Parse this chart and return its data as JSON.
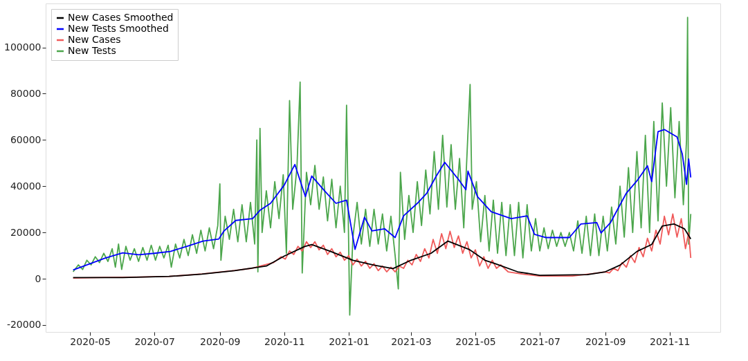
{
  "chart_data": {
    "type": "line",
    "legend": "top left",
    "xlim": [
      "2020-03-20",
      "2021-12-19"
    ],
    "ylim": [
      -23000,
      119000
    ],
    "xticks": [
      "2020-05",
      "2020-07",
      "2020-09",
      "2020-11",
      "2021-01",
      "2021-03",
      "2021-05",
      "2021-07",
      "2021-09",
      "2021-11"
    ],
    "yticks": [
      -20000,
      0,
      20000,
      40000,
      60000,
      80000,
      100000
    ],
    "series": [
      {
        "name": "New Cases Smoothed",
        "color": "#000000",
        "type": "line",
        "x": [
          "2020-04-15",
          "2020-06-01",
          "2020-07-15",
          "2020-08-15",
          "2020-09-15",
          "2020-10-15",
          "2020-11-01",
          "2020-11-20",
          "2020-11-27",
          "2020-12-15",
          "2021-01-05",
          "2021-01-25",
          "2021-02-12",
          "2021-03-01",
          "2021-03-20",
          "2021-04-05",
          "2021-04-25",
          "2021-05-10",
          "2021-05-20",
          "2021-06-10",
          "2021-07-01",
          "2021-08-15",
          "2021-09-01",
          "2021-09-15",
          "2021-10-01",
          "2021-10-15",
          "2021-10-25",
          "2021-11-05",
          "2021-11-15",
          "2021-11-21"
        ],
        "values": [
          500,
          500,
          1000,
          2000,
          3500,
          5500,
          9800,
          13900,
          14800,
          11800,
          8000,
          5900,
          4400,
          8000,
          11000,
          16300,
          12700,
          8000,
          6500,
          3000,
          1500,
          1800,
          3000,
          5900,
          11800,
          14800,
          22800,
          23700,
          21600,
          17200
        ]
      },
      {
        "name": "New Tests Smoothed",
        "color": "#0000ff",
        "type": "line",
        "x": [
          "2020-04-15",
          "2020-05-01",
          "2020-05-15",
          "2020-06-01",
          "2020-06-16",
          "2020-07-01",
          "2020-07-16",
          "2020-08-02",
          "2020-08-16",
          "2020-08-31",
          "2020-09-05",
          "2020-09-16",
          "2020-10-02",
          "2020-10-09",
          "2020-10-19",
          "2020-11-01",
          "2020-11-11",
          "2020-11-21",
          "2020-11-27",
          "2020-12-10",
          "2020-12-20",
          "2020-12-30",
          "2021-01-07",
          "2021-01-16",
          "2021-01-23",
          "2021-02-04",
          "2021-02-14",
          "2021-02-22",
          "2021-03-07",
          "2021-03-16",
          "2021-03-25",
          "2021-04-02",
          "2021-04-15",
          "2021-04-22",
          "2021-04-24",
          "2021-05-03",
          "2021-05-16",
          "2021-06-04",
          "2021-06-19",
          "2021-06-26",
          "2021-07-07",
          "2021-07-29",
          "2021-08-09",
          "2021-08-24",
          "2021-08-28",
          "2021-09-06",
          "2021-09-21",
          "2021-10-02",
          "2021-10-11",
          "2021-10-15",
          "2021-10-21",
          "2021-10-27",
          "2021-11-08",
          "2021-11-13",
          "2021-11-17",
          "2021-11-19",
          "2021-11-21"
        ],
        "values": [
          3800,
          6500,
          8900,
          11200,
          10400,
          11000,
          11800,
          14200,
          16300,
          17200,
          20700,
          25200,
          26000,
          29600,
          32600,
          40500,
          49400,
          35500,
          44400,
          37600,
          32600,
          34000,
          12700,
          26600,
          20700,
          21600,
          17800,
          27200,
          32600,
          37000,
          44400,
          50300,
          42900,
          38500,
          46500,
          35500,
          29000,
          26000,
          27200,
          19200,
          17800,
          17800,
          23700,
          24300,
          19800,
          24300,
          37000,
          42900,
          48800,
          42000,
          63600,
          64500,
          61300,
          53900,
          40800,
          51800,
          43800
        ]
      },
      {
        "name": "New Cases",
        "color": "#f05a5a",
        "type": "line",
        "x": [
          "2020-04-15",
          "2020-05-15",
          "2020-06-15",
          "2020-07-15",
          "2020-08-15",
          "2020-09-15",
          "2020-10-01",
          "2020-10-15",
          "2020-10-22",
          "2020-10-29",
          "2020-11-02",
          "2020-11-06",
          "2020-11-10",
          "2020-11-14",
          "2020-11-18",
          "2020-11-22",
          "2020-11-26",
          "2020-11-30",
          "2020-12-04",
          "2020-12-08",
          "2020-12-12",
          "2020-12-16",
          "2020-12-20",
          "2020-12-24",
          "2020-12-28",
          "2021-01-01",
          "2021-01-05",
          "2021-01-09",
          "2021-01-13",
          "2021-01-17",
          "2021-01-21",
          "2021-01-25",
          "2021-01-29",
          "2021-02-02",
          "2021-02-06",
          "2021-02-10",
          "2021-02-14",
          "2021-02-18",
          "2021-02-22",
          "2021-02-26",
          "2021-03-02",
          "2021-03-06",
          "2021-03-10",
          "2021-03-14",
          "2021-03-18",
          "2021-03-22",
          "2021-03-26",
          "2021-03-30",
          "2021-04-03",
          "2021-04-07",
          "2021-04-11",
          "2021-04-15",
          "2021-04-19",
          "2021-04-23",
          "2021-04-27",
          "2021-05-01",
          "2021-05-05",
          "2021-05-09",
          "2021-05-13",
          "2021-05-17",
          "2021-05-21",
          "2021-05-25",
          "2021-06-01",
          "2021-06-15",
          "2021-07-01",
          "2021-08-01",
          "2021-08-20",
          "2021-09-01",
          "2021-09-05",
          "2021-09-09",
          "2021-09-13",
          "2021-09-17",
          "2021-09-21",
          "2021-09-25",
          "2021-09-29",
          "2021-10-03",
          "2021-10-07",
          "2021-10-11",
          "2021-10-15",
          "2021-10-19",
          "2021-10-23",
          "2021-10-27",
          "2021-10-31",
          "2021-11-04",
          "2021-11-08",
          "2021-11-12",
          "2021-11-16",
          "2021-11-19",
          "2021-11-21"
        ],
        "values": [
          300,
          600,
          700,
          1000,
          2100,
          3600,
          4500,
          6200,
          7000,
          9500,
          8500,
          12000,
          10500,
          14000,
          12000,
          16000,
          13500,
          16000,
          12500,
          14500,
          10500,
          13000,
          9500,
          11500,
          8000,
          10000,
          6000,
          8500,
          5500,
          7500,
          4500,
          6500,
          3500,
          5500,
          3000,
          5000,
          3000,
          5500,
          4500,
          8000,
          6000,
          10500,
          7500,
          13000,
          9000,
          17000,
          11000,
          19500,
          13000,
          20500,
          13500,
          18500,
          11000,
          16000,
          9000,
          12500,
          5500,
          9500,
          4500,
          8000,
          4500,
          6000,
          3000,
          2000,
          1200,
          1200,
          2200,
          3000,
          2500,
          4500,
          3500,
          7000,
          5000,
          10000,
          7000,
          13500,
          9500,
          17500,
          12000,
          21000,
          15000,
          27000,
          19000,
          28000,
          18000,
          26000,
          13000,
          20000,
          9000
        ]
      },
      {
        "name": "New Tests",
        "color": "#4ca64c",
        "type": "line",
        "x": [
          "2020-04-15",
          "2020-04-20",
          "2020-04-24",
          "2020-04-28",
          "2020-05-02",
          "2020-05-06",
          "2020-05-10",
          "2020-05-14",
          "2020-05-18",
          "2020-05-22",
          "2020-05-25",
          "2020-05-28",
          "2020-05-31",
          "2020-06-04",
          "2020-06-08",
          "2020-06-12",
          "2020-06-16",
          "2020-06-20",
          "2020-06-24",
          "2020-06-28",
          "2020-07-02",
          "2020-07-06",
          "2020-07-10",
          "2020-07-14",
          "2020-07-17",
          "2020-07-21",
          "2020-07-25",
          "2020-07-29",
          "2020-08-02",
          "2020-08-06",
          "2020-08-10",
          "2020-08-14",
          "2020-08-18",
          "2020-08-22",
          "2020-08-26",
          "2020-08-30",
          "2020-09-01",
          "2020-09-02",
          "2020-09-06",
          "2020-09-10",
          "2020-09-14",
          "2020-09-18",
          "2020-09-22",
          "2020-09-26",
          "2020-09-30",
          "2020-10-04",
          "2020-10-06",
          "2020-10-07",
          "2020-10-09",
          "2020-10-11",
          "2020-10-15",
          "2020-10-19",
          "2020-10-23",
          "2020-10-27",
          "2020-10-31",
          "2020-11-03",
          "2020-11-06",
          "2020-11-09",
          "2020-11-13",
          "2020-11-16",
          "2020-11-18",
          "2020-11-22",
          "2020-11-26",
          "2020-11-30",
          "2020-12-04",
          "2020-12-08",
          "2020-12-12",
          "2020-12-16",
          "2020-12-20",
          "2020-12-24",
          "2020-12-28",
          "2020-12-30",
          "2021-01-02",
          "2021-01-05",
          "2021-01-09",
          "2021-01-13",
          "2021-01-17",
          "2021-01-21",
          "2021-01-25",
          "2021-01-29",
          "2021-02-02",
          "2021-02-06",
          "2021-02-10",
          "2021-02-14",
          "2021-02-17",
          "2021-02-19",
          "2021-02-23",
          "2021-02-27",
          "2021-03-03",
          "2021-03-07",
          "2021-03-11",
          "2021-03-15",
          "2021-03-19",
          "2021-03-23",
          "2021-03-27",
          "2021-03-31",
          "2021-04-04",
          "2021-04-08",
          "2021-04-12",
          "2021-04-16",
          "2021-04-20",
          "2021-04-26",
          "2021-04-28",
          "2021-05-02",
          "2021-05-06",
          "2021-05-10",
          "2021-05-14",
          "2021-05-18",
          "2021-05-22",
          "2021-05-26",
          "2021-05-30",
          "2021-06-03",
          "2021-06-07",
          "2021-06-11",
          "2021-06-15",
          "2021-06-19",
          "2021-06-23",
          "2021-06-27",
          "2021-07-01",
          "2021-07-05",
          "2021-07-09",
          "2021-07-13",
          "2021-07-17",
          "2021-07-21",
          "2021-07-25",
          "2021-07-29",
          "2021-08-02",
          "2021-08-06",
          "2021-08-10",
          "2021-08-14",
          "2021-08-18",
          "2021-08-22",
          "2021-08-26",
          "2021-08-30",
          "2021-09-03",
          "2021-09-07",
          "2021-09-11",
          "2021-09-15",
          "2021-09-19",
          "2021-09-23",
          "2021-09-27",
          "2021-10-01",
          "2021-10-05",
          "2021-10-09",
          "2021-10-13",
          "2021-10-17",
          "2021-10-21",
          "2021-10-25",
          "2021-10-29",
          "2021-11-02",
          "2021-11-06",
          "2021-11-10",
          "2021-11-14",
          "2021-11-17",
          "2021-11-18",
          "2021-11-19",
          "2021-11-21"
        ],
        "values": [
          3000,
          6000,
          4000,
          8000,
          6000,
          9500,
          7000,
          11000,
          7500,
          13000,
          5000,
          15000,
          4000,
          14000,
          8000,
          13000,
          7500,
          13500,
          8000,
          14500,
          8000,
          14000,
          9000,
          14500,
          5000,
          15000,
          9000,
          17000,
          10000,
          19000,
          11000,
          21000,
          12000,
          22000,
          13000,
          23000,
          41000,
          8000,
          27000,
          17000,
          30000,
          16000,
          32000,
          16000,
          33000,
          15000,
          60000,
          3000,
          65000,
          20000,
          38000,
          22000,
          42000,
          26000,
          45000,
          11000,
          77000,
          30000,
          48000,
          85000,
          2500,
          46000,
          32000,
          49000,
          30000,
          44000,
          25000,
          43000,
          22000,
          40000,
          20000,
          75000,
          -15700,
          18000,
          33000,
          15000,
          30000,
          14000,
          30000,
          15000,
          28000,
          12000,
          27000,
          10000,
          -4400,
          46000,
          17000,
          36000,
          20000,
          42000,
          23000,
          47000,
          28000,
          55000,
          30000,
          62000,
          31000,
          58000,
          30000,
          52000,
          22000,
          84000,
          30000,
          42000,
          16000,
          36000,
          12000,
          34000,
          11000,
          33000,
          10000,
          32000,
          10000,
          33000,
          9000,
          32000,
          12000,
          26000,
          12000,
          22000,
          13000,
          21000,
          14000,
          20000,
          14000,
          20000,
          12000,
          25000,
          11000,
          27000,
          10000,
          28000,
          10000,
          27000,
          12000,
          31000,
          15000,
          40000,
          18000,
          48000,
          20000,
          55000,
          22000,
          62000,
          20000,
          68000,
          25000,
          76000,
          40000,
          74000,
          35000,
          68000,
          32000,
          60000,
          113000,
          15000,
          28000
        ]
      }
    ]
  }
}
